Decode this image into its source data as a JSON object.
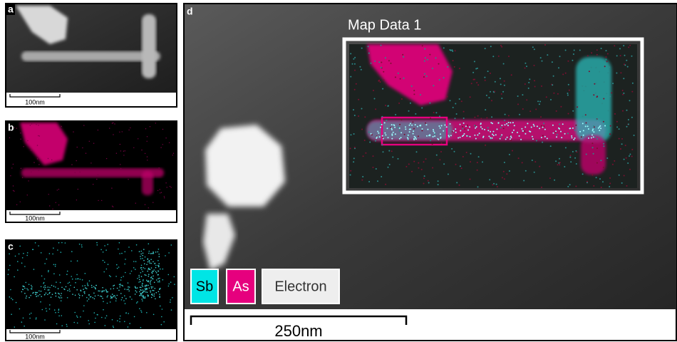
{
  "panels": [
    {
      "label": "a",
      "scale_bar": "100nm"
    },
    {
      "label": "b",
      "scale_bar": "100nm"
    },
    {
      "label": "c",
      "scale_bar": "100nm"
    },
    {
      "label": "d",
      "scale_bar": "250nm",
      "map_title": "Map Data 1",
      "legend": [
        "Sb",
        "As",
        "Electron"
      ]
    }
  ]
}
